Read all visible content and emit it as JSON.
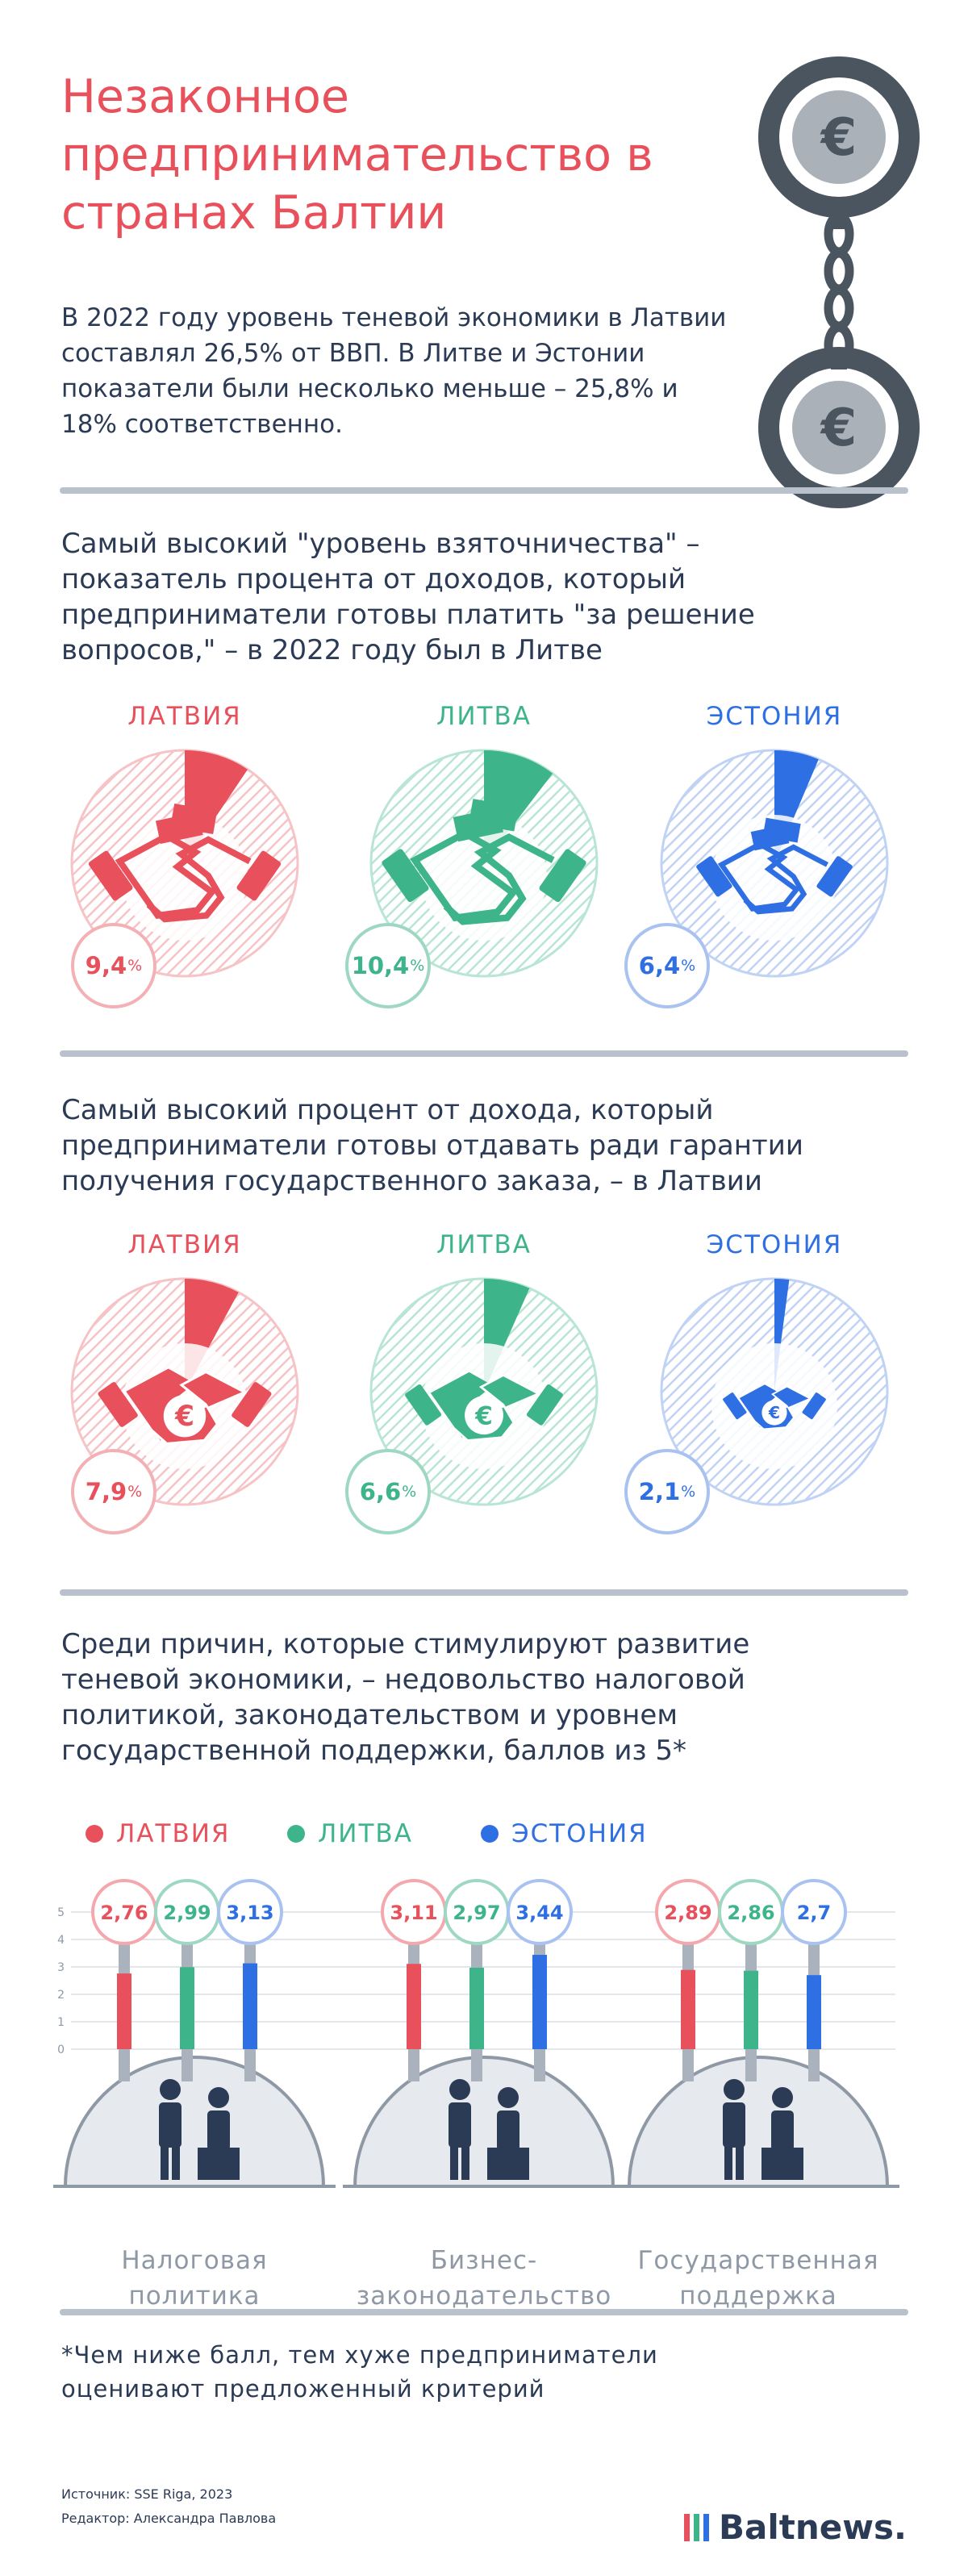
{
  "title": "Незаконное предпринимательство в странах Балтии",
  "intro": "В 2022 году уровень теневой экономики в Латвии составлял 26,5% от ВВП. В Литве и Эстонии показатели были несколько меньше – 25,8% и 18% соответственно.",
  "icons": {
    "header": "handcuffs-euro-icon",
    "bribe": "handshake-money-icon",
    "contract": "handshake-euro-icon",
    "tax": "businessman-paperwork-icon",
    "law": "justice-scales-money-bag-icon",
    "support": "helping-hand-icon"
  },
  "colors": {
    "latvia": "#e8505b",
    "lithuania": "#3db489",
    "estonia": "#2f6fe4",
    "gray": "#8f99a6",
    "dark": "#2b3a55"
  },
  "section1": {
    "heading": "Самый высокий \"уровень взяточничества\" – показатель процента от доходов, который предприниматели готовы платить \"за решение вопросов,\" – в 2022 году был в Литве",
    "countries": [
      {
        "name": "ЛАТВИЯ",
        "value": "9,4",
        "unit": "%"
      },
      {
        "name": "ЛИТВА",
        "value": "10,4",
        "unit": "%"
      },
      {
        "name": "ЭСТОНИЯ",
        "value": "6,4",
        "unit": "%"
      }
    ]
  },
  "section2": {
    "heading": "Самый высокий процент от дохода, который предприниматели готовы отдавать ради гарантии получения государственного заказа, – в Латвии",
    "countries": [
      {
        "name": "ЛАТВИЯ",
        "value": "7,9",
        "unit": "%"
      },
      {
        "name": "ЛИТВА",
        "value": "6,6",
        "unit": "%"
      },
      {
        "name": "ЭСТОНИЯ",
        "value": "2,1",
        "unit": "%"
      }
    ]
  },
  "section3": {
    "heading": "Среди причин, которые стимулируют развитие теневой экономики, – недовольство налоговой политикой, законодательством и уровнем государственной поддержки, баллов из 5*",
    "legend": [
      "ЛАТВИЯ",
      "ЛИТВА",
      "ЭСТОНИЯ"
    ],
    "groups": [
      {
        "label_line1": "Налоговая",
        "label_line2": "политика",
        "values": [
          "2,76",
          "2,99",
          "3,13"
        ]
      },
      {
        "label_line1": "Бизнес-",
        "label_line2": "законодательство",
        "values": [
          "3,11",
          "2,97",
          "3,44"
        ]
      },
      {
        "label_line1": "Государственная",
        "label_line2": "поддержка",
        "values": [
          "2,89",
          "2,86",
          "2,7"
        ]
      }
    ]
  },
  "chart_data": [
    {
      "type": "pie",
      "title": "Самый высокий \"уровень взяточничества\" – показатель процента от доходов, который предприниматели готовы платить \"за решение вопросов,\" – в 2022 году был в Литве",
      "categories": [
        "ЛАТВИЯ",
        "ЛИТВА",
        "ЭСТОНИЯ"
      ],
      "values": [
        9.4,
        10.4,
        6.4
      ],
      "unit": "%"
    },
    {
      "type": "pie",
      "title": "Самый высокий процент от дохода, который предприниматели готовы отдавать ради гарантии получения государственного заказа, – в Латвии",
      "categories": [
        "ЛАТВИЯ",
        "ЛИТВА",
        "ЭСТОНИЯ"
      ],
      "values": [
        7.9,
        6.6,
        2.1
      ],
      "unit": "%"
    },
    {
      "type": "bar",
      "title": "Среди причин, которые стимулируют развитие теневой экономики, – недовольство налоговой политикой, законодательством и уровнем государственной поддержки, баллов из 5*",
      "categories": [
        "Налоговая политика",
        "Бизнес-законодательство",
        "Государственная поддержка"
      ],
      "series": [
        {
          "name": "ЛАТВИЯ",
          "values": [
            2.76,
            3.11,
            2.89
          ]
        },
        {
          "name": "ЛИТВА",
          "values": [
            2.99,
            2.97,
            2.86
          ]
        },
        {
          "name": "ЭСТОНИЯ",
          "values": [
            3.13,
            3.44,
            2.7
          ]
        }
      ],
      "ylim": [
        0,
        5
      ],
      "yticks": [
        "0",
        "1",
        "2",
        "3",
        "4",
        "5"
      ],
      "legend": "top-left"
    }
  ],
  "footnote": "*Чем ниже балл, тем хуже предприниматели оценивают предложенный критерий",
  "source": "Источник: SSE Riga, 2023",
  "editor": "Редактор: Александра Павлова",
  "brand": "Baltnews."
}
